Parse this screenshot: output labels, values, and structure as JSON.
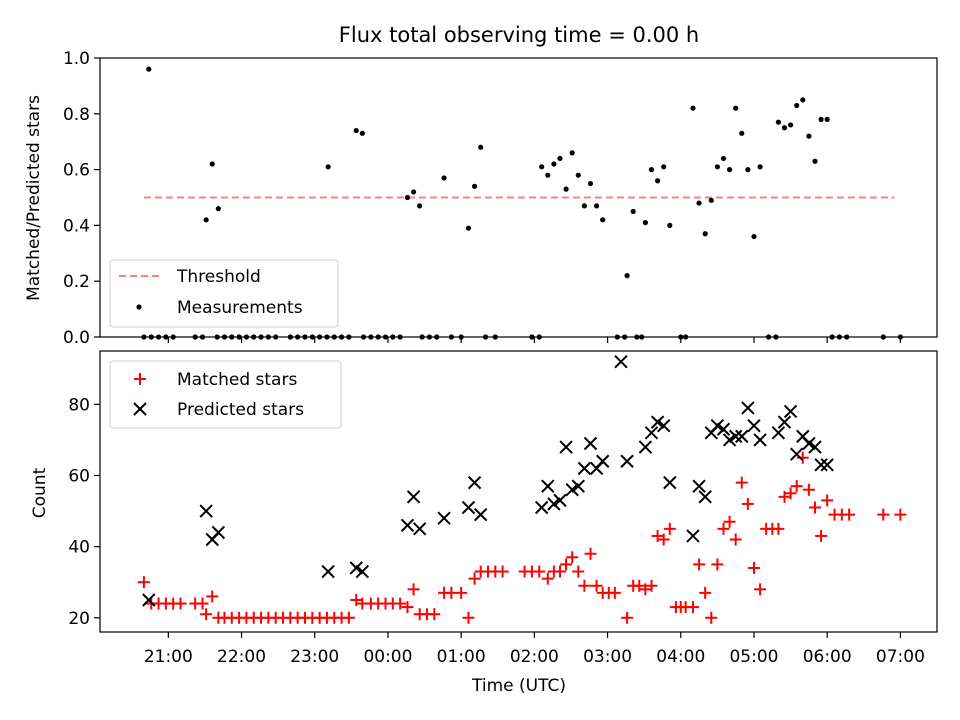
{
  "figure": {
    "title": "Flux total observing time = 0.00 h",
    "xlabel": "Time (UTC)",
    "xtick_labels": [
      "21:00",
      "22:00",
      "23:00",
      "00:00",
      "01:00",
      "02:00",
      "03:00",
      "04:00",
      "05:00",
      "06:00",
      "07:00"
    ]
  },
  "chart_data": [
    {
      "type": "scatter",
      "ylabel": "Matched/Predicted stars",
      "ylim": [
        0,
        1.0
      ],
      "yticks": [
        0.0,
        0.2,
        0.4,
        0.6,
        0.8,
        1.0
      ],
      "xlim": [
        "20:04",
        "07:30"
      ],
      "legend_position": "lower-left",
      "grid": false,
      "threshold": {
        "name": "Threshold",
        "value": 0.5,
        "x": [
          "20:40",
          "06:55"
        ],
        "color": "#ff7f7f"
      },
      "measurements": {
        "name": "Measurements",
        "color": "#000000",
        "x": [
          "20:44",
          "21:31",
          "21:36",
          "21:41",
          "23:11",
          "23:34",
          "23:39",
          "00:16",
          "00:21",
          "00:26",
          "00:46",
          "01:06",
          "01:11",
          "01:16",
          "02:06",
          "02:11",
          "02:16",
          "02:21",
          "02:26",
          "02:31",
          "02:36",
          "02:41",
          "02:46",
          "02:51",
          "02:56",
          "03:16",
          "03:21",
          "03:31",
          "03:36",
          "03:41",
          "03:46",
          "03:51",
          "04:10",
          "04:15",
          "04:20",
          "04:25",
          "04:30",
          "04:35",
          "04:40",
          "04:45",
          "04:50",
          "04:55",
          "05:00",
          "05:05",
          "05:20",
          "05:25",
          "05:30",
          "05:35",
          "05:40",
          "05:45",
          "05:50",
          "05:55",
          "06:00",
          "20:40",
          "20:46",
          "20:52",
          "20:58",
          "21:04",
          "21:22",
          "21:28",
          "21:40",
          "21:46",
          "21:52",
          "21:58",
          "22:04",
          "22:10",
          "22:16",
          "22:22",
          "22:28",
          "22:40",
          "22:46",
          "22:52",
          "22:58",
          "23:04",
          "23:10",
          "23:16",
          "23:22",
          "23:28",
          "23:40",
          "23:46",
          "23:52",
          "23:58",
          "00:04",
          "00:10",
          "00:28",
          "00:34",
          "00:40",
          "00:52",
          "01:00",
          "01:20",
          "01:28",
          "01:58",
          "02:04",
          "03:08",
          "03:14",
          "03:24",
          "03:28",
          "04:00",
          "04:04",
          "05:12",
          "05:18",
          "06:04",
          "06:10",
          "06:16",
          "06:46",
          "07:00"
        ],
        "y": [
          0.96,
          0.42,
          0.62,
          0.46,
          0.61,
          0.74,
          0.73,
          0.5,
          0.52,
          0.47,
          0.57,
          0.39,
          0.54,
          0.68,
          0.61,
          0.58,
          0.62,
          0.64,
          0.53,
          0.66,
          0.58,
          0.47,
          0.55,
          0.47,
          0.42,
          0.22,
          0.45,
          0.41,
          0.6,
          0.56,
          0.61,
          0.4,
          0.82,
          0.48,
          0.37,
          0.49,
          0.61,
          0.64,
          0.6,
          0.82,
          0.73,
          0.6,
          0.36,
          0.61,
          0.77,
          0.75,
          0.76,
          0.83,
          0.85,
          0.72,
          0.63,
          0.78,
          0.78,
          0,
          0,
          0,
          0,
          0,
          0,
          0,
          0,
          0,
          0,
          0,
          0,
          0,
          0,
          0,
          0,
          0,
          0,
          0,
          0,
          0,
          0,
          0,
          0,
          0,
          0,
          0,
          0,
          0,
          0,
          0,
          0,
          0,
          0,
          0,
          0,
          0,
          0,
          0,
          0,
          0,
          0,
          0,
          0,
          0,
          0,
          0,
          0,
          0,
          0,
          0,
          0,
          0
        ]
      }
    },
    {
      "type": "scatter",
      "ylabel": "Count",
      "ylim": [
        16,
        95
      ],
      "yticks": [
        20,
        40,
        60,
        80
      ],
      "xlim": [
        "20:04",
        "07:30"
      ],
      "legend_position": "upper-left",
      "grid": false,
      "series": [
        {
          "name": "Matched stars",
          "marker": "+",
          "color": "#ff0000",
          "x": [
            "20:40",
            "20:46",
            "20:52",
            "20:58",
            "21:04",
            "21:10",
            "21:22",
            "21:28",
            "21:31",
            "21:36",
            "21:41",
            "21:46",
            "21:52",
            "21:58",
            "22:04",
            "22:10",
            "22:16",
            "22:22",
            "22:28",
            "22:34",
            "22:40",
            "22:46",
            "22:52",
            "22:58",
            "23:04",
            "23:10",
            "23:16",
            "23:22",
            "23:28",
            "23:34",
            "23:39",
            "23:46",
            "23:52",
            "23:58",
            "00:04",
            "00:10",
            "00:16",
            "00:21",
            "00:26",
            "00:32",
            "00:38",
            "00:46",
            "00:52",
            "01:00",
            "01:06",
            "01:11",
            "01:16",
            "01:22",
            "01:28",
            "01:34",
            "01:52",
            "01:58",
            "02:04",
            "02:11",
            "02:16",
            "02:21",
            "02:26",
            "02:31",
            "02:36",
            "02:41",
            "02:46",
            "02:51",
            "02:56",
            "03:01",
            "03:06",
            "03:16",
            "03:21",
            "03:26",
            "03:31",
            "03:36",
            "03:41",
            "03:46",
            "03:51",
            "03:56",
            "04:00",
            "04:04",
            "04:10",
            "04:15",
            "04:20",
            "04:25",
            "04:30",
            "04:35",
            "04:40",
            "04:45",
            "04:50",
            "04:55",
            "05:00",
            "05:05",
            "05:10",
            "05:15",
            "05:20",
            "05:25",
            "05:30",
            "05:35",
            "05:40",
            "05:45",
            "05:50",
            "05:55",
            "06:00",
            "06:06",
            "06:12",
            "06:18",
            "06:46",
            "07:00"
          ],
          "values": [
            30,
            24,
            24,
            24,
            24,
            24,
            24,
            24,
            21,
            26,
            20,
            20,
            20,
            20,
            20,
            20,
            20,
            20,
            20,
            20,
            20,
            20,
            20,
            20,
            20,
            20,
            20,
            20,
            20,
            25,
            24,
            24,
            24,
            24,
            24,
            24,
            23,
            28,
            21,
            21,
            21,
            27,
            27,
            27,
            20,
            31,
            33,
            33,
            33,
            33,
            33,
            33,
            33,
            31,
            33,
            33,
            35,
            37,
            33,
            29,
            38,
            29,
            27,
            27,
            27,
            20,
            29,
            29,
            28,
            29,
            43,
            42,
            45,
            23,
            23,
            23,
            23,
            35,
            27,
            20,
            35,
            45,
            47,
            42,
            58,
            52,
            34,
            28,
            45,
            45,
            45,
            54,
            55,
            57,
            65,
            56,
            51,
            43,
            53,
            49,
            49,
            49,
            49,
            49
          ]
        },
        {
          "name": "Predicted stars",
          "marker": "x",
          "color": "#000000",
          "x": [
            "20:44",
            "21:31",
            "21:36",
            "21:41",
            "23:11",
            "23:34",
            "23:39",
            "00:16",
            "00:21",
            "00:26",
            "00:46",
            "01:06",
            "01:11",
            "01:16",
            "02:06",
            "02:11",
            "02:16",
            "02:21",
            "02:26",
            "02:31",
            "02:36",
            "02:41",
            "02:46",
            "02:51",
            "02:56",
            "03:11",
            "03:16",
            "03:31",
            "03:36",
            "03:41",
            "03:46",
            "03:51",
            "04:10",
            "04:15",
            "04:20",
            "04:25",
            "04:30",
            "04:35",
            "04:40",
            "04:45",
            "04:50",
            "04:55",
            "05:00",
            "05:05",
            "05:20",
            "05:25",
            "05:30",
            "05:35",
            "05:40",
            "05:45",
            "05:50",
            "05:55",
            "06:00"
          ],
          "values": [
            25,
            50,
            42,
            44,
            33,
            34,
            33,
            46,
            54,
            45,
            48,
            51,
            58,
            49,
            51,
            57,
            52,
            53,
            68,
            56,
            57,
            62,
            69,
            62,
            64,
            92,
            64,
            68,
            72,
            75,
            74,
            58,
            43,
            57,
            54,
            72,
            74,
            73,
            70,
            71,
            71,
            79,
            74,
            70,
            72,
            75,
            78,
            66,
            71,
            69,
            68,
            63,
            63
          ]
        }
      ]
    }
  ]
}
